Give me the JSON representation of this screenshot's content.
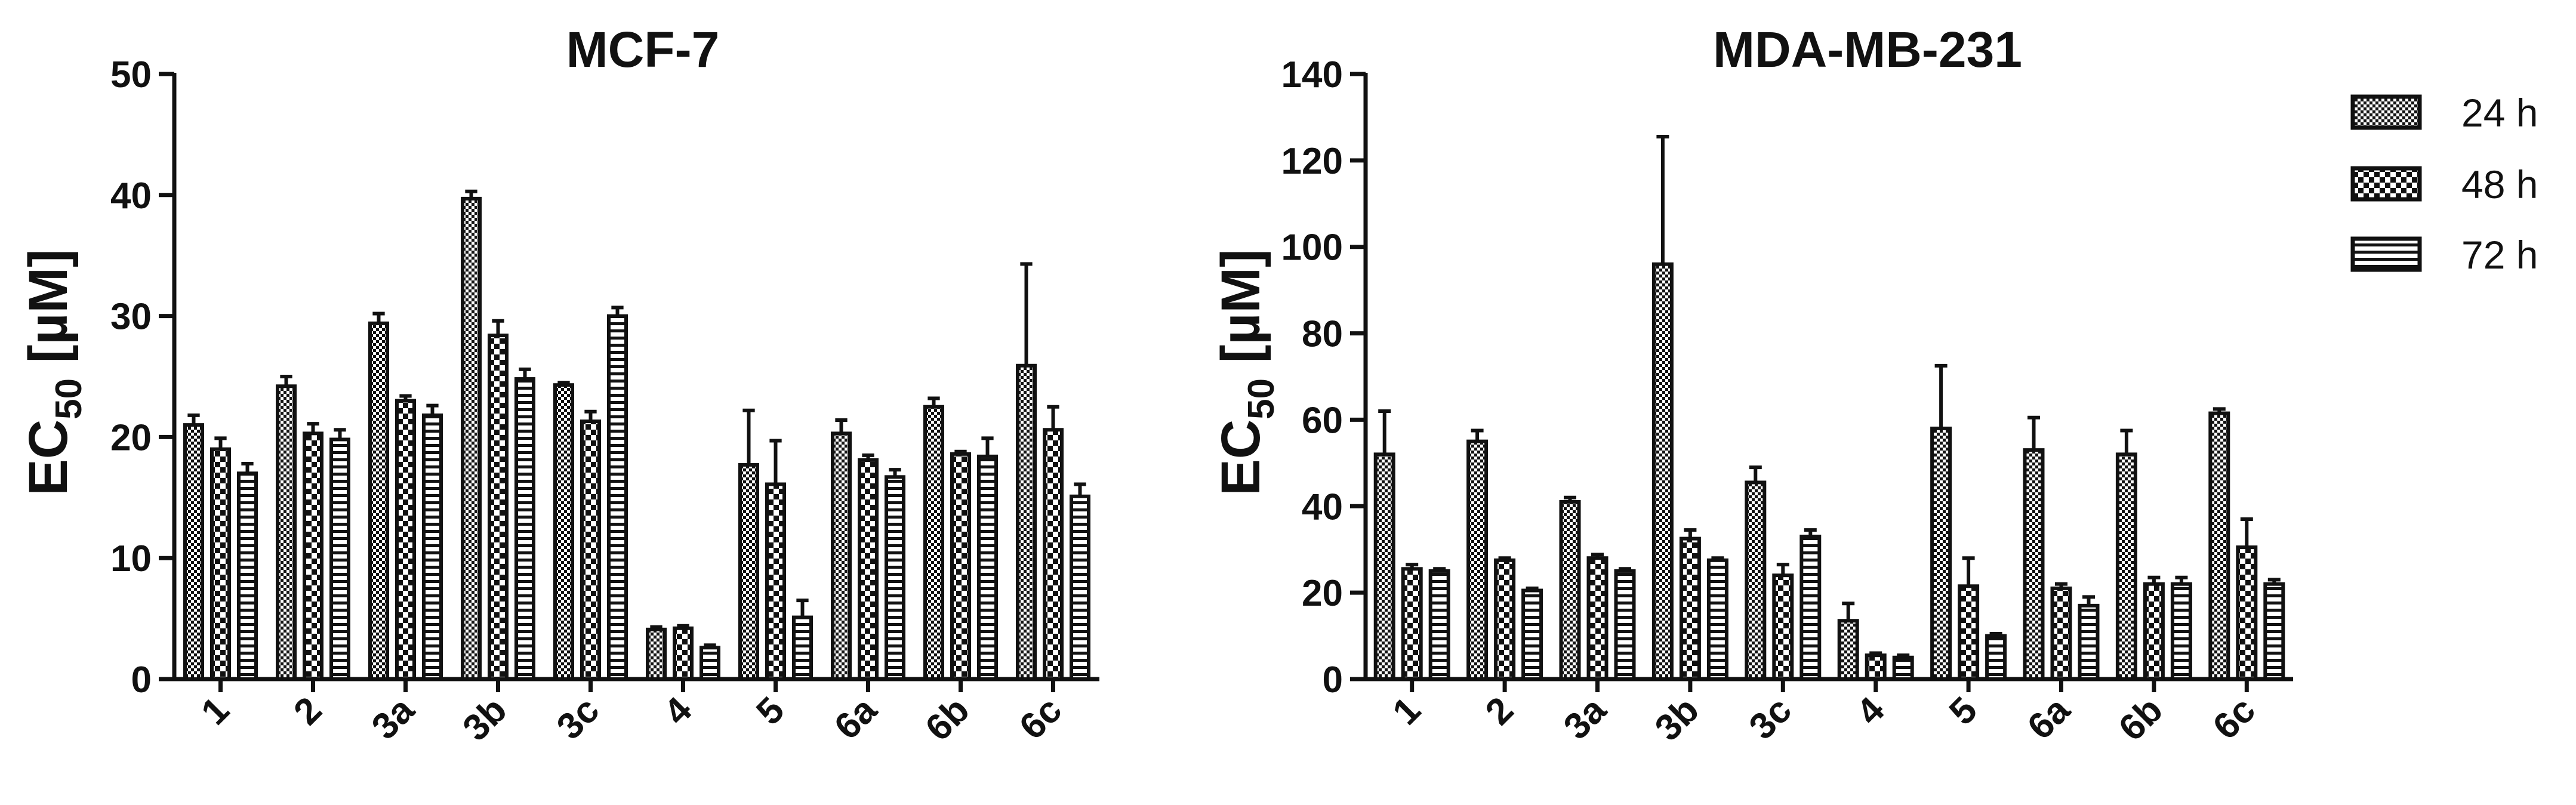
{
  "colors": {
    "ink": "#111111",
    "background": "#ffffff"
  },
  "legend": {
    "position": "right",
    "entries": [
      {
        "label": "24 h",
        "pattern": "checker-fine"
      },
      {
        "label": "48 h",
        "pattern": "checker-coarse"
      },
      {
        "label": "72 h",
        "pattern": "horizontal-stripes"
      }
    ]
  },
  "chart_data": [
    {
      "type": "bar",
      "title": "MCF-7",
      "ylabel_main": "EC",
      "ylabel_sub": "50",
      "ylabel_unit": " [µM]",
      "ylim": [
        0,
        50
      ],
      "yticks": [
        0,
        10,
        20,
        30,
        40,
        50
      ],
      "grid": false,
      "categories": [
        "1",
        "2",
        "3a",
        "3b",
        "3c",
        "4",
        "5",
        "6a",
        "6b",
        "6c"
      ],
      "series": [
        {
          "name": "24 h",
          "values": [
            21,
            24.2,
            29.4,
            39.7,
            24.3,
            4.1,
            17.7,
            20.3,
            22.5,
            25.9
          ],
          "errors": [
            0.8,
            0.8,
            0.8,
            0.6,
            0.2,
            0.2,
            4.5,
            1.1,
            0.7,
            8.4
          ]
        },
        {
          "name": "48 h",
          "values": [
            19,
            20.3,
            23,
            28.4,
            21.3,
            4.2,
            16.1,
            18.1,
            18.6,
            20.6
          ],
          "errors": [
            0.9,
            0.8,
            0.4,
            1.2,
            0.8,
            0.2,
            3.6,
            0.4,
            0.2,
            1.9
          ]
        },
        {
          "name": "72 h",
          "values": [
            17,
            19.8,
            21.8,
            24.8,
            30,
            2.6,
            5.1,
            16.7,
            18.4,
            15.1
          ],
          "errors": [
            0.8,
            0.8,
            0.8,
            0.8,
            0.7,
            0.2,
            1.4,
            0.6,
            1.5,
            1
          ]
        }
      ]
    },
    {
      "type": "bar",
      "title": "MDA-MB-231",
      "ylabel_main": "EC",
      "ylabel_sub": "50",
      "ylabel_unit": " [µM]",
      "ylim": [
        0,
        140
      ],
      "yticks": [
        0,
        20,
        40,
        60,
        80,
        100,
        120,
        140
      ],
      "grid": false,
      "categories": [
        "1",
        "2",
        "3a",
        "3b",
        "3c",
        "4",
        "5",
        "6a",
        "6b",
        "6c"
      ],
      "series": [
        {
          "name": "24 h",
          "values": [
            52,
            55,
            41,
            96,
            45.5,
            13.5,
            58,
            53,
            52,
            61.5
          ],
          "errors": [
            10,
            2.5,
            1,
            29.5,
            3.5,
            4,
            14.5,
            7.5,
            5.5,
            1
          ]
        },
        {
          "name": "48 h",
          "values": [
            25.5,
            27.5,
            28,
            32.5,
            24,
            5.5,
            21.5,
            21,
            22,
            30.5
          ],
          "errors": [
            1,
            0.5,
            0.8,
            2,
            2.5,
            0.5,
            6.5,
            1,
            1.5,
            6.5
          ]
        },
        {
          "name": "72 h",
          "values": [
            25,
            20.5,
            25,
            27.5,
            33,
            5,
            10,
            17,
            22,
            22
          ],
          "errors": [
            0.5,
            0.5,
            0.5,
            0.5,
            1.5,
            0.5,
            0.5,
            2,
            1.5,
            1
          ]
        }
      ]
    }
  ]
}
